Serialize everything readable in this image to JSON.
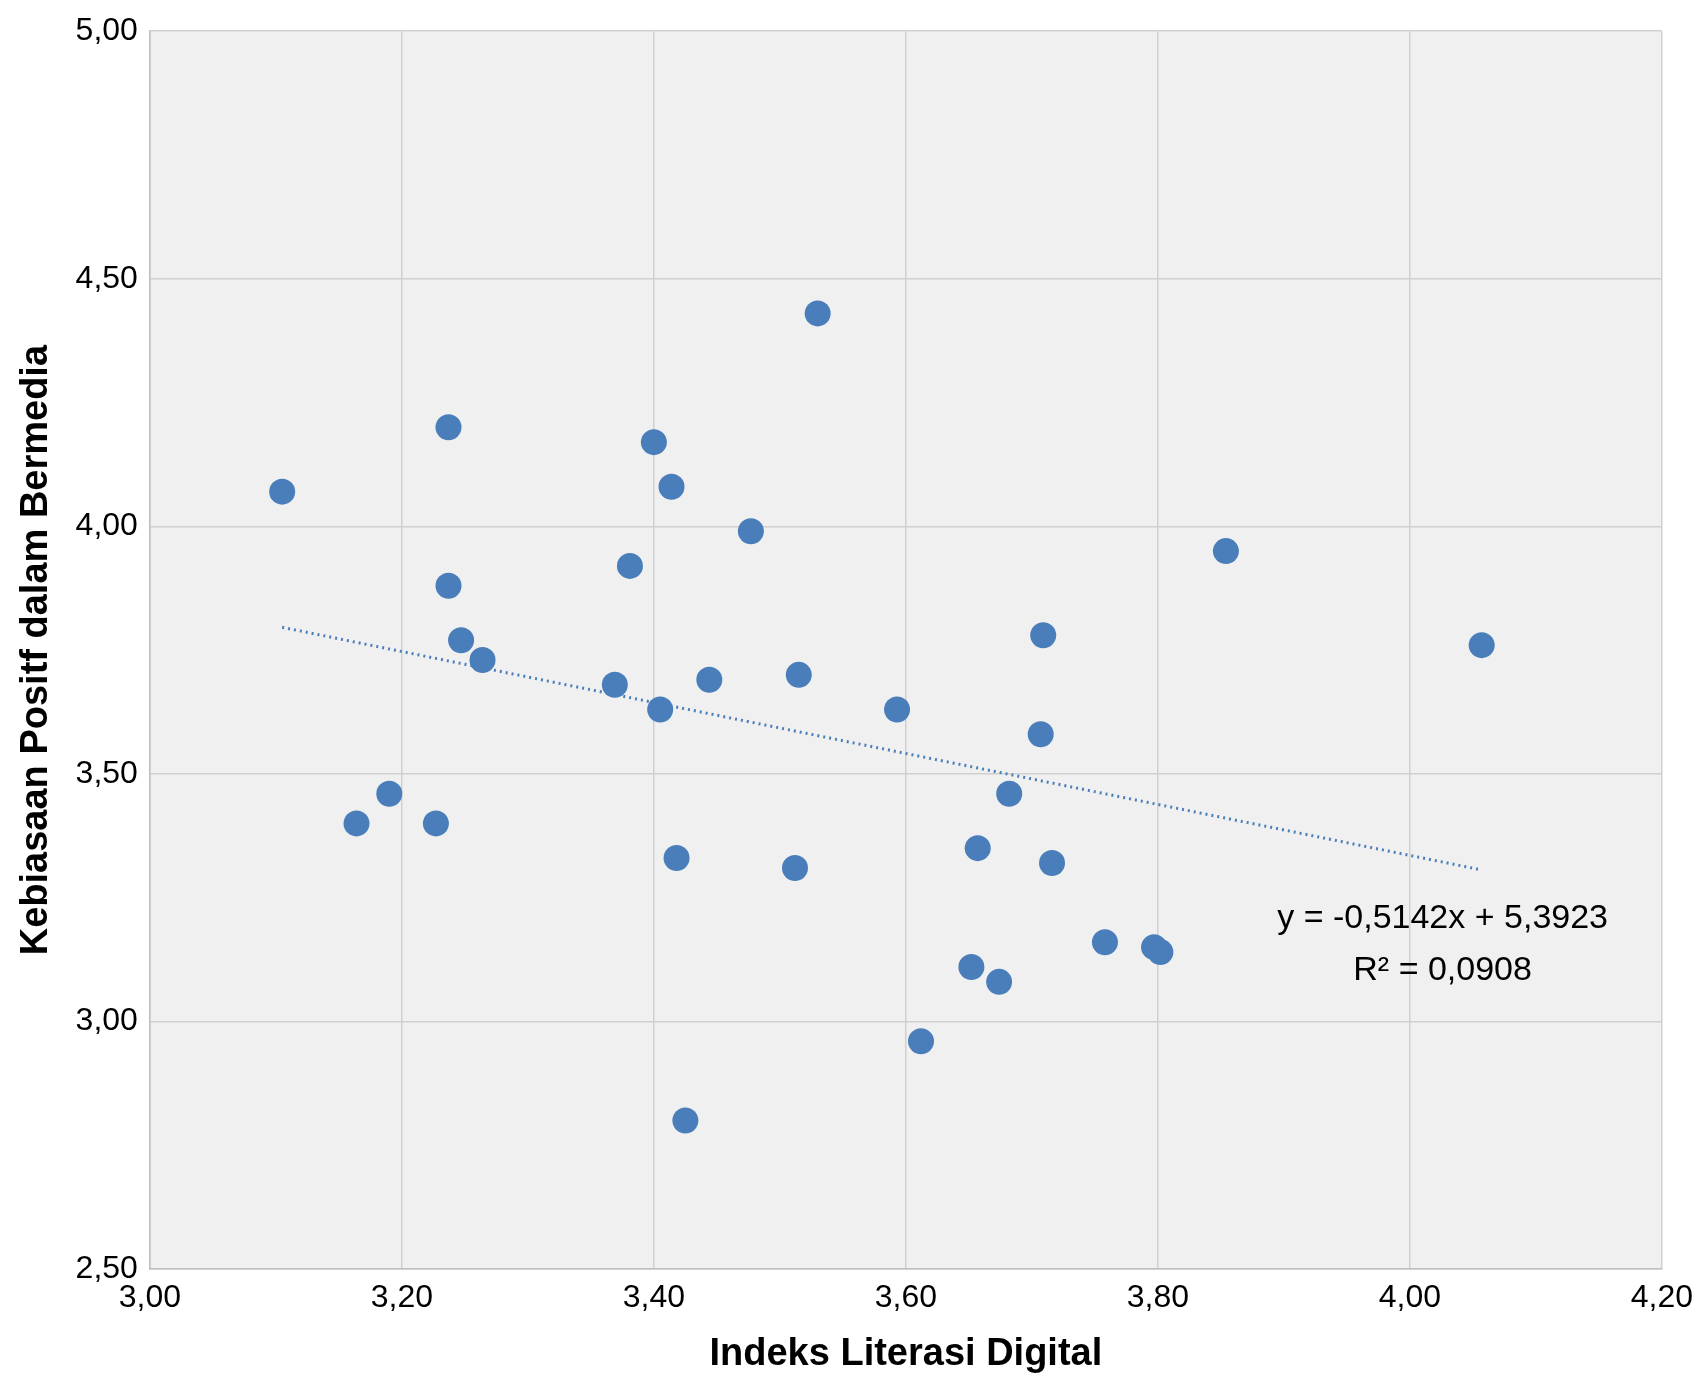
{
  "chart_data": {
    "type": "scatter",
    "xlabel": "Indeks Literasi Digital",
    "ylabel": "Kebiasaan Positf dalam Bermedia",
    "xlim": [
      3,
      4.2
    ],
    "ylim": [
      2.5,
      5
    ],
    "xticks": [
      {
        "value": 3,
        "label": "3,00"
      },
      {
        "value": 3.2,
        "label": "3,20"
      },
      {
        "value": 3.4,
        "label": "3,40"
      },
      {
        "value": 3.6,
        "label": "3,60"
      },
      {
        "value": 3.8,
        "label": "3,80"
      },
      {
        "value": 4,
        "label": "4,00"
      },
      {
        "value": 4.2,
        "label": "4,20"
      }
    ],
    "yticks": [
      {
        "value": 2.5,
        "label": "2,50"
      },
      {
        "value": 3,
        "label": "3,00"
      },
      {
        "value": 3.5,
        "label": "3,50"
      },
      {
        "value": 4,
        "label": "4,00"
      },
      {
        "value": 4.5,
        "label": "4,50"
      },
      {
        "value": 5,
        "label": "5,00"
      }
    ],
    "grid": true,
    "legend": false,
    "marker": "circle",
    "series": [
      {
        "color": "#4a7ebb",
        "x": [
          3.105,
          3.237,
          3.237,
          3.247,
          3.264,
          3.164,
          3.19,
          3.227,
          3.369,
          3.381,
          3.4,
          3.414,
          3.405,
          3.418,
          3.425,
          3.444,
          3.477,
          3.515,
          3.512,
          3.53,
          3.593,
          3.612,
          3.652,
          3.657,
          3.674,
          3.682,
          3.707,
          3.709,
          3.716,
          3.758,
          3.797,
          3.802,
          3.854,
          4.057
        ],
        "values": [
          4.07,
          4.2,
          3.88,
          3.77,
          3.73,
          3.4,
          3.46,
          3.4,
          3.68,
          3.92,
          4.17,
          4.08,
          3.63,
          3.33,
          2.8,
          3.69,
          3.99,
          3.7,
          3.31,
          4.43,
          3.63,
          2.96,
          3.11,
          3.35,
          3.08,
          3.46,
          3.58,
          3.78,
          3.32,
          3.16,
          3.15,
          3.14,
          3.95,
          3.76
        ]
      },
      {
        "type": "line",
        "color": "#4a7ebb",
        "marker": "none",
        "line_style": "dotted",
        "x": [
          3.105,
          4.057
        ],
        "values": [
          3.796,
          3.306
        ]
      }
    ],
    "annotations": [
      "y = -0,5142x + 5,3923",
      "R² = 0,0908"
    ]
  }
}
